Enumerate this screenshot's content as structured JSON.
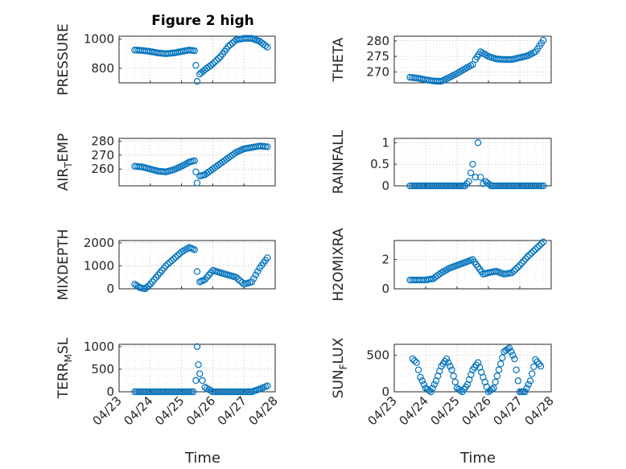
{
  "figure_title": "Figure 2 high",
  "x_axis_label": "Time",
  "x_tick_labels": [
    "04/23",
    "04/24",
    "04/25",
    "04/26",
    "04/27",
    "04/28"
  ],
  "marker_color": "#0072BD",
  "chart_data": [
    {
      "type": "scatter",
      "id": "pressure",
      "ylabel": "PRESSURE",
      "title": "Figure 2 high",
      "xlabel": "",
      "xlim": [
        "04/23",
        "04/28"
      ],
      "ylim": [
        700,
        1020
      ],
      "yticks": [
        800,
        1000
      ],
      "yticklabels": [
        "800",
        "1000"
      ],
      "x": [
        "2024-04-23T12:00",
        "2024-04-23T18:00",
        "2024-04-24T00:00",
        "2024-04-24T06:00",
        "2024-04-24T12:00",
        "2024-04-24T18:00",
        "2024-04-25T00:00",
        "2024-04-25T06:00",
        "2024-04-25T10:00",
        "2024-04-25T11:00",
        "2024-04-25T12:00",
        "2024-04-25T14:00",
        "2024-04-25T18:00",
        "2024-04-26T00:00",
        "2024-04-26T06:00",
        "2024-04-26T12:00",
        "2024-04-26T18:00",
        "2024-04-27T00:00",
        "2024-04-27T06:00",
        "2024-04-27T12:00",
        "2024-04-27T18:00"
      ],
      "y": [
        925,
        922,
        915,
        905,
        900,
        905,
        915,
        925,
        920,
        820,
        710,
        760,
        790,
        830,
        880,
        950,
        995,
        1005,
        1005,
        985,
        945
      ]
    },
    {
      "type": "scatter",
      "id": "theta",
      "ylabel": "THETA",
      "xlabel": "",
      "xlim": [
        "04/23",
        "04/28"
      ],
      "ylim": [
        266.5,
        281.5
      ],
      "yticks": [
        270,
        275,
        280
      ],
      "yticklabels": [
        "270",
        "275",
        "280"
      ],
      "x": [
        "2024-04-23T12:00",
        "2024-04-23T18:00",
        "2024-04-24T00:00",
        "2024-04-24T06:00",
        "2024-04-24T12:00",
        "2024-04-24T18:00",
        "2024-04-25T00:00",
        "2024-04-25T06:00",
        "2024-04-25T12:00",
        "2024-04-25T14:00",
        "2024-04-25T18:00",
        "2024-04-26T00:00",
        "2024-04-26T06:00",
        "2024-04-26T12:00",
        "2024-04-26T18:00",
        "2024-04-27T00:00",
        "2024-04-27T06:00",
        "2024-04-27T12:00",
        "2024-04-27T18:00"
      ],
      "y": [
        268.3,
        268.0,
        267.5,
        267.1,
        267.0,
        268.2,
        269.5,
        271.0,
        272.4,
        274.0,
        276.5,
        275.0,
        274.2,
        274.0,
        274.0,
        274.6,
        275.2,
        276.5,
        280.2
      ]
    },
    {
      "type": "scatter",
      "id": "air_temp",
      "ylabel": "AIR_TEMP",
      "ylabel_text": "AIR",
      "ylabel_sub": "T",
      "ylabel_tail": "EMP",
      "xlabel": "",
      "xlim": [
        "04/23",
        "04/28"
      ],
      "ylim": [
        248,
        282
      ],
      "yticks": [
        260,
        270,
        280
      ],
      "yticklabels": [
        "260",
        "270",
        "280"
      ],
      "x": [
        "2024-04-23T12:00",
        "2024-04-23T18:00",
        "2024-04-24T00:00",
        "2024-04-24T06:00",
        "2024-04-24T12:00",
        "2024-04-24T18:00",
        "2024-04-25T00:00",
        "2024-04-25T06:00",
        "2024-04-25T10:00",
        "2024-04-25T11:00",
        "2024-04-25T12:00",
        "2024-04-25T14:00",
        "2024-04-25T18:00",
        "2024-04-26T00:00",
        "2024-04-26T06:00",
        "2024-04-26T12:00",
        "2024-04-26T18:00",
        "2024-04-27T00:00",
        "2024-04-27T06:00",
        "2024-04-27T12:00",
        "2024-04-27T18:00"
      ],
      "y": [
        262,
        261.5,
        260,
        258.5,
        258,
        259.5,
        262,
        265,
        266,
        258,
        250,
        255,
        256,
        260,
        264,
        268,
        272,
        274.5,
        275.5,
        276.5,
        276
      ]
    },
    {
      "type": "scatter",
      "id": "rainfall",
      "ylabel": "RAINFALL",
      "xlabel": "",
      "xlim": [
        "04/23",
        "04/28"
      ],
      "ylim": [
        0,
        1.1
      ],
      "yticks": [
        0,
        0.5,
        1
      ],
      "yticklabels": [
        "0",
        "0.5",
        "1"
      ],
      "x": [
        "2024-04-23T12:00",
        "2024-04-23T18:00",
        "2024-04-24T00:00",
        "2024-04-24T06:00",
        "2024-04-24T12:00",
        "2024-04-24T18:00",
        "2024-04-25T00:00",
        "2024-04-25T06:00",
        "2024-04-25T09:00",
        "2024-04-25T12:00",
        "2024-04-25T14:00",
        "2024-04-25T16:00",
        "2024-04-25T18:00",
        "2024-04-25T20:00",
        "2024-04-25T22:00",
        "2024-04-26T02:00",
        "2024-04-26T06:00",
        "2024-04-26T12:00",
        "2024-04-26T18:00",
        "2024-04-27T00:00",
        "2024-04-27T06:00",
        "2024-04-27T12:00",
        "2024-04-27T18:00"
      ],
      "y": [
        0,
        0,
        0,
        0,
        0,
        0,
        0,
        0,
        0.1,
        0.5,
        0.2,
        1.0,
        0.2,
        0.05,
        0.1,
        0,
        0,
        0,
        0,
        0,
        0,
        0,
        0
      ]
    },
    {
      "type": "scatter",
      "id": "mixdepth",
      "ylabel": "MIXDEPTH",
      "xlabel": "",
      "xlim": [
        "04/23",
        "04/28"
      ],
      "ylim": [
        0,
        2100
      ],
      "yticks": [
        0,
        1000,
        2000
      ],
      "yticklabels": [
        "0",
        "1000",
        "2000"
      ],
      "x": [
        "2024-04-23T12:00",
        "2024-04-23T16:00",
        "2024-04-23T20:00",
        "2024-04-24T00:00",
        "2024-04-24T06:00",
        "2024-04-24T12:00",
        "2024-04-24T18:00",
        "2024-04-25T00:00",
        "2024-04-25T06:00",
        "2024-04-25T10:00",
        "2024-04-25T12:00",
        "2024-04-25T14:00",
        "2024-04-25T18:00",
        "2024-04-26T00:00",
        "2024-04-26T06:00",
        "2024-04-26T12:00",
        "2024-04-26T18:00",
        "2024-04-27T00:00",
        "2024-04-27T06:00",
        "2024-04-27T12:00",
        "2024-04-27T18:00"
      ],
      "y": [
        200,
        50,
        0,
        200,
        600,
        1000,
        1300,
        1600,
        1800,
        1700,
        750,
        300,
        400,
        800,
        700,
        600,
        500,
        200,
        300,
        900,
        1350
      ]
    },
    {
      "type": "scatter",
      "id": "h2omixra",
      "ylabel": "H2OMIXRA",
      "xlabel": "",
      "xlim": [
        "04/23",
        "04/28"
      ],
      "ylim": [
        0,
        3.3
      ],
      "yticks": [
        0,
        2
      ],
      "yticklabels": [
        "0",
        "2"
      ],
      "x": [
        "2024-04-23T12:00",
        "2024-04-23T18:00",
        "2024-04-24T00:00",
        "2024-04-24T06:00",
        "2024-04-24T12:00",
        "2024-04-24T18:00",
        "2024-04-25T00:00",
        "2024-04-25T06:00",
        "2024-04-25T12:00",
        "2024-04-25T16:00",
        "2024-04-25T20:00",
        "2024-04-26T00:00",
        "2024-04-26T06:00",
        "2024-04-26T12:00",
        "2024-04-26T18:00",
        "2024-04-27T00:00",
        "2024-04-27T06:00",
        "2024-04-27T12:00",
        "2024-04-27T18:00"
      ],
      "y": [
        0.6,
        0.6,
        0.6,
        0.7,
        1.1,
        1.4,
        1.6,
        1.8,
        2.0,
        1.5,
        1.0,
        1.1,
        1.2,
        1.0,
        1.1,
        1.6,
        2.2,
        2.7,
        3.2
      ]
    },
    {
      "type": "scatter",
      "id": "terr_msl",
      "ylabel": "TERR_MSL",
      "ylabel_text": "TERR",
      "ylabel_sub": "M",
      "ylabel_tail": "SL",
      "xlabel": "Time",
      "xlim": [
        "04/23",
        "04/28"
      ],
      "ylim": [
        0,
        1050
      ],
      "yticks": [
        0,
        500,
        1000
      ],
      "yticklabels": [
        "0",
        "500",
        "1000"
      ],
      "x": [
        "2024-04-23T12:00",
        "2024-04-23T18:00",
        "2024-04-24T00:00",
        "2024-04-24T06:00",
        "2024-04-24T12:00",
        "2024-04-24T18:00",
        "2024-04-25T00:00",
        "2024-04-25T06:00",
        "2024-04-25T09:00",
        "2024-04-25T11:00",
        "2024-04-25T12:00",
        "2024-04-25T13:00",
        "2024-04-25T14:00",
        "2024-04-25T16:00",
        "2024-04-25T18:00",
        "2024-04-26T00:00",
        "2024-04-26T06:00",
        "2024-04-26T12:00",
        "2024-04-26T18:00",
        "2024-04-27T00:00",
        "2024-04-27T06:00",
        "2024-04-27T12:00",
        "2024-04-27T18:00"
      ],
      "y": [
        0,
        0,
        0,
        0,
        0,
        0,
        0,
        0,
        0,
        250,
        1000,
        600,
        400,
        250,
        100,
        0,
        0,
        0,
        0,
        0,
        0,
        60,
        130
      ]
    },
    {
      "type": "scatter",
      "id": "sun_flux",
      "ylabel": "SUN_FLUX",
      "ylabel_text": "SUN",
      "ylabel_sub": "F",
      "ylabel_tail": "LUX",
      "xlabel": "Time",
      "xlim": [
        "04/23",
        "04/28"
      ],
      "ylim": [
        0,
        650
      ],
      "yticks": [
        0,
        500
      ],
      "yticklabels": [
        "0",
        "500"
      ],
      "x": [
        "2024-04-23T14:00",
        "2024-04-23T17:00",
        "2024-04-23T20:00",
        "2024-04-24T00:00",
        "2024-04-24T04:00",
        "2024-04-24T08:00",
        "2024-04-24T12:00",
        "2024-04-24T16:00",
        "2024-04-24T20:00",
        "2024-04-25T00:00",
        "2024-04-25T04:00",
        "2024-04-25T08:00",
        "2024-04-25T12:00",
        "2024-04-25T16:00",
        "2024-04-25T20:00",
        "2024-04-26T00:00",
        "2024-04-26T04:00",
        "2024-04-26T08:00",
        "2024-04-26T12:00",
        "2024-04-26T16:00",
        "2024-04-26T20:00",
        "2024-04-27T00:00",
        "2024-04-27T04:00",
        "2024-04-27T08:00",
        "2024-04-27T12:00",
        "2024-04-27T16:00"
      ],
      "y": [
        450,
        400,
        200,
        50,
        0,
        150,
        350,
        450,
        300,
        50,
        0,
        100,
        300,
        400,
        200,
        0,
        50,
        300,
        550,
        600,
        450,
        0,
        0,
        150,
        440,
        350
      ]
    }
  ]
}
